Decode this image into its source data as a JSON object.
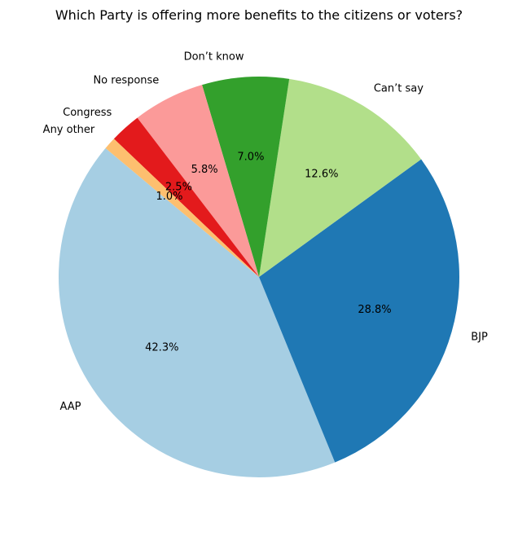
{
  "chart_data": {
    "type": "pie",
    "title": "Which Party is offering more benefits to the citizens or voters?",
    "start_angle_deg": 140,
    "direction": "counterclockwise",
    "slices": [
      {
        "label": "AAP",
        "value": 42.3,
        "pct_label": "42.3%",
        "color": "#a6cee3"
      },
      {
        "label": "BJP",
        "value": 28.8,
        "pct_label": "28.8%",
        "color": "#1f78b4"
      },
      {
        "label": "Can’t say",
        "value": 12.6,
        "pct_label": "12.6%",
        "color": "#b2df8a"
      },
      {
        "label": "Don’t know",
        "value": 7.0,
        "pct_label": "7.0%",
        "color": "#33a02c"
      },
      {
        "label": "No response",
        "value": 5.8,
        "pct_label": "5.8%",
        "color": "#fb9a99"
      },
      {
        "label": "Congress",
        "value": 2.5,
        "pct_label": "2.5%",
        "color": "#e31a1c"
      },
      {
        "label": "Any other",
        "value": 1.0,
        "pct_label": "1.0%",
        "color": "#fdbf6f"
      }
    ]
  }
}
